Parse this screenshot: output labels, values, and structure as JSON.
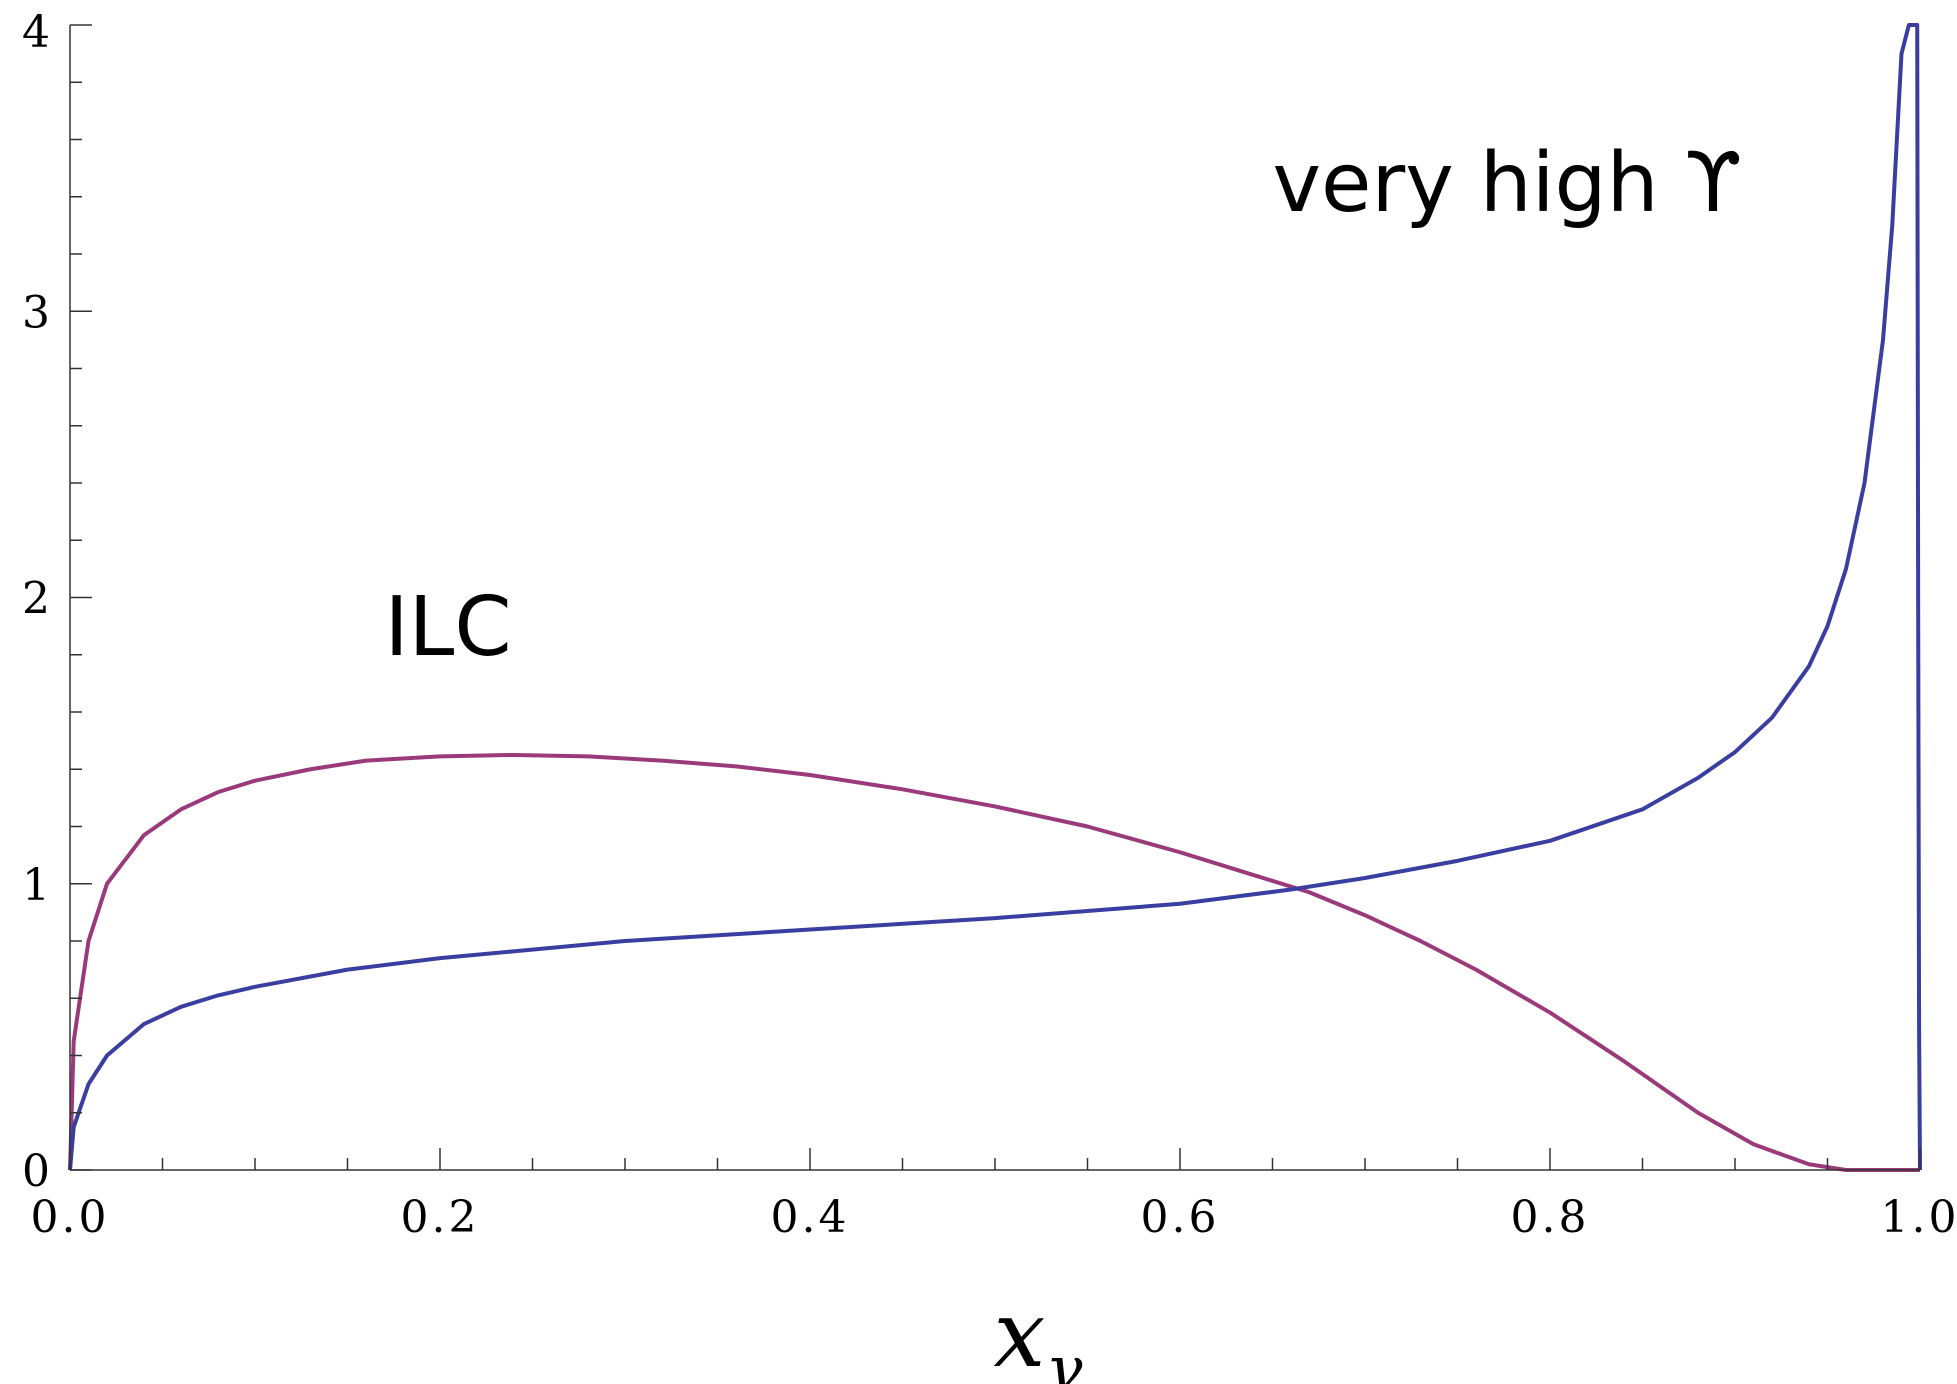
{
  "chart_data": {
    "type": "line",
    "title": "",
    "xlabel": "x",
    "xlabel_subscript": "γ",
    "ylabel": "",
    "xlim": [
      0,
      1
    ],
    "ylim": [
      0,
      4
    ],
    "x_ticks": [
      "0.0",
      "0.2",
      "0.4",
      "0.6",
      "0.8",
      "1.0"
    ],
    "y_ticks": [
      "0",
      "1",
      "2",
      "3",
      "4"
    ],
    "grid": false,
    "annotations": [
      {
        "text": "ILC",
        "x": 0.17,
        "y": 1.8
      },
      {
        "text": "very high ϒ",
        "x": 0.65,
        "y": 3.35
      }
    ],
    "series": [
      {
        "color": "#9b3a7a",
        "x": [
          0,
          0.002,
          0.01,
          0.02,
          0.04,
          0.06,
          0.08,
          0.1,
          0.13,
          0.16,
          0.2,
          0.24,
          0.28,
          0.32,
          0.36,
          0.4,
          0.45,
          0.5,
          0.55,
          0.6,
          0.64,
          0.67,
          0.7,
          0.73,
          0.76,
          0.8,
          0.84,
          0.88,
          0.91,
          0.94,
          0.96,
          0.98,
          1.0
        ],
        "values": [
          0,
          0.45,
          0.8,
          1.0,
          1.17,
          1.26,
          1.32,
          1.36,
          1.4,
          1.43,
          1.445,
          1.45,
          1.445,
          1.43,
          1.41,
          1.38,
          1.33,
          1.27,
          1.2,
          1.11,
          1.03,
          0.97,
          0.89,
          0.8,
          0.7,
          0.55,
          0.38,
          0.2,
          0.09,
          0.02,
          0.0,
          0.0,
          0.0
        ]
      },
      {
        "color": "#3a3ea0",
        "x": [
          0,
          0.002,
          0.01,
          0.02,
          0.04,
          0.06,
          0.08,
          0.1,
          0.15,
          0.2,
          0.3,
          0.4,
          0.5,
          0.6,
          0.66,
          0.7,
          0.75,
          0.8,
          0.85,
          0.88,
          0.9,
          0.92,
          0.94,
          0.95,
          0.96,
          0.97,
          0.98,
          0.985,
          0.99,
          0.994,
          0.997,
          0.9985,
          0.999,
          0.9995,
          1.0
        ],
        "values": [
          0,
          0.15,
          0.3,
          0.4,
          0.51,
          0.57,
          0.61,
          0.64,
          0.7,
          0.74,
          0.8,
          0.84,
          0.88,
          0.93,
          0.98,
          1.02,
          1.08,
          1.15,
          1.26,
          1.37,
          1.46,
          1.58,
          1.76,
          1.9,
          2.1,
          2.4,
          2.9,
          3.3,
          3.9,
          4.1,
          4.1,
          4.1,
          2.0,
          0.5,
          0
        ]
      }
    ]
  }
}
